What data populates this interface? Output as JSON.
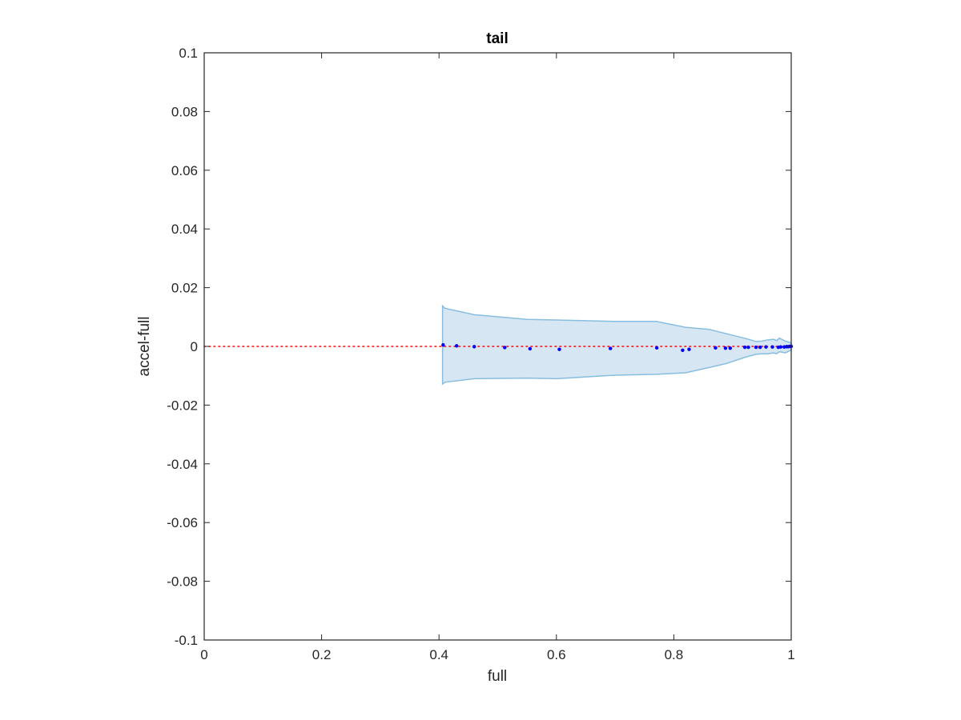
{
  "chart_data": {
    "type": "scatter",
    "title": "tail",
    "xlabel": "full",
    "ylabel": "accel-full",
    "xlim": [
      0,
      1
    ],
    "ylim": [
      -0.1,
      0.1
    ],
    "xticks": [
      0,
      0.2,
      0.4,
      0.6,
      0.8,
      1
    ],
    "xtick_labels": [
      "0",
      "0.2",
      "0.4",
      "0.6",
      "0.8",
      "1"
    ],
    "yticks": [
      -0.1,
      -0.08,
      -0.06,
      -0.04,
      -0.02,
      0,
      0.02,
      0.04,
      0.06,
      0.08,
      0.1
    ],
    "ytick_labels": [
      "-0.1",
      "-0.08",
      "-0.06",
      "-0.04",
      "-0.02",
      "0",
      "0.02",
      "0.04",
      "0.06",
      "0.08",
      "0.1"
    ],
    "grid": false,
    "reference_line": {
      "y": 0,
      "style": "dotted",
      "color": "#ff0000"
    },
    "band": {
      "color": "#d6e7f3",
      "edge_color": "#88bde0",
      "x": [
        0.406,
        0.41,
        0.46,
        0.55,
        0.6,
        0.7,
        0.77,
        0.82,
        0.86,
        0.89,
        0.92,
        0.94,
        0.95,
        0.96,
        0.97,
        0.975,
        0.98,
        0.99,
        1.0
      ],
      "upper": [
        0.0138,
        0.013,
        0.0108,
        0.0092,
        0.009,
        0.0085,
        0.0085,
        0.0065,
        0.0058,
        0.0043,
        0.0028,
        0.0017,
        0.0018,
        0.0022,
        0.0024,
        0.002,
        0.0028,
        0.0018,
        0.0012
      ],
      "lower": [
        -0.0128,
        -0.0122,
        -0.011,
        -0.0108,
        -0.011,
        -0.0098,
        -0.0095,
        -0.009,
        -0.0072,
        -0.0058,
        -0.0038,
        -0.0027,
        -0.0025,
        -0.0025,
        -0.0022,
        -0.0025,
        -0.0018,
        -0.0022,
        -0.0012
      ]
    },
    "series": [
      {
        "color": "#0000ff",
        "x": [
          0.407,
          0.43,
          0.46,
          0.512,
          0.555,
          0.605,
          0.692,
          0.771,
          0.815,
          0.826,
          0.871,
          0.888,
          0.896,
          0.921,
          0.927,
          0.94,
          0.947,
          0.957,
          0.968,
          0.978,
          0.982,
          0.988,
          0.992,
          0.995,
          0.998,
          1.0
        ],
        "y": [
          0.0005,
          0.0002,
          -0.0001,
          -0.0004,
          -0.0008,
          -0.001,
          -0.0007,
          -0.0005,
          -0.0013,
          -0.001,
          -0.0005,
          -0.0006,
          -0.0006,
          -0.0003,
          -0.0003,
          -0.0003,
          -0.0003,
          -0.0002,
          -0.0002,
          -0.0003,
          -0.0002,
          -0.0002,
          -0.0001,
          -0.0001,
          0.0,
          0.0
        ]
      }
    ]
  }
}
